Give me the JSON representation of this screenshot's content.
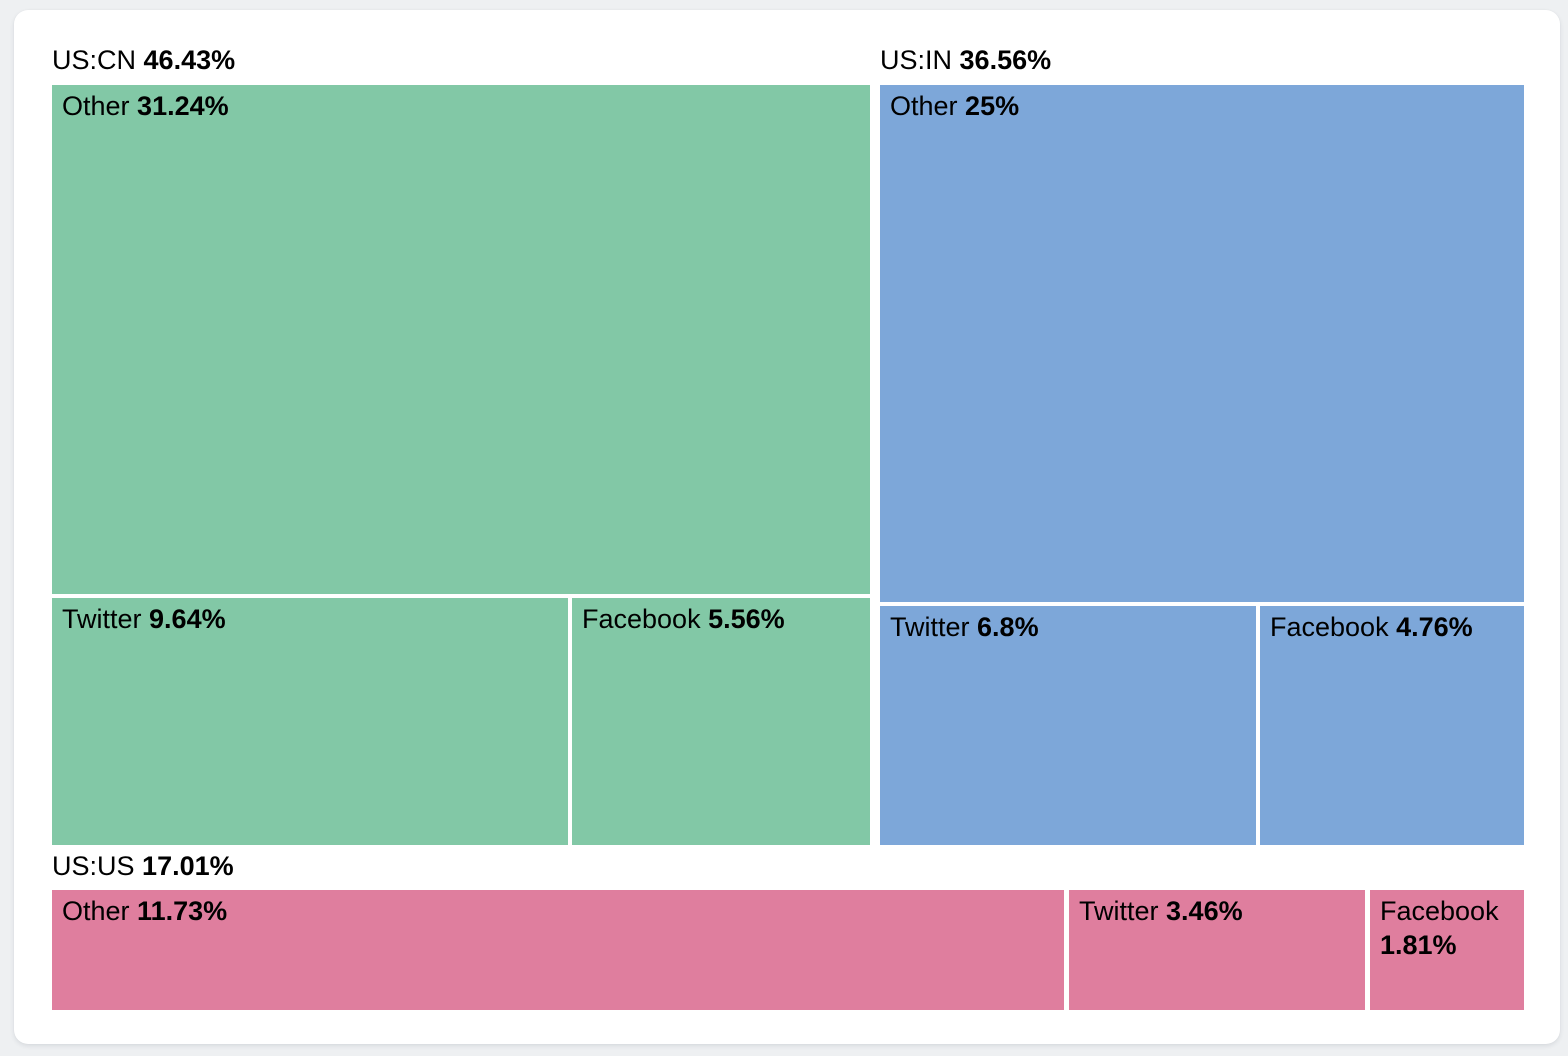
{
  "colors": {
    "page_background": "#eef0f2",
    "card_background": "#ffffff",
    "text": "#000000",
    "cell_gap": "#ffffff",
    "group_us_cn": "#82c8a6",
    "group_us_in": "#7da7d9",
    "group_us_us": "#df7e9e"
  },
  "chart_data": {
    "type": "treemap",
    "title": "",
    "unit": "percent",
    "legend_position": "none",
    "groups": [
      {
        "label": "US:CN",
        "value": 46.43,
        "display": "46.43%",
        "color": "#82c8a6",
        "children": [
          {
            "label": "Other",
            "value": 31.24,
            "display": "31.24%"
          },
          {
            "label": "Twitter",
            "value": 9.64,
            "display": "9.64%"
          },
          {
            "label": "Facebook",
            "value": 5.56,
            "display": "5.56%"
          }
        ]
      },
      {
        "label": "US:IN",
        "value": 36.56,
        "display": "36.56%",
        "color": "#7da7d9",
        "children": [
          {
            "label": "Other",
            "value": 25,
            "display": "25%"
          },
          {
            "label": "Twitter",
            "value": 6.8,
            "display": "6.8%"
          },
          {
            "label": "Facebook",
            "value": 4.76,
            "display": "4.76%"
          }
        ]
      },
      {
        "label": "US:US",
        "value": 17.01,
        "display": "17.01%",
        "color": "#df7e9e",
        "children": [
          {
            "label": "Other",
            "value": 11.73,
            "display": "11.73%"
          },
          {
            "label": "Twitter",
            "value": 3.46,
            "display": "3.46%"
          },
          {
            "label": "Facebook",
            "value": 1.81,
            "display": "1.81%"
          }
        ]
      }
    ]
  }
}
